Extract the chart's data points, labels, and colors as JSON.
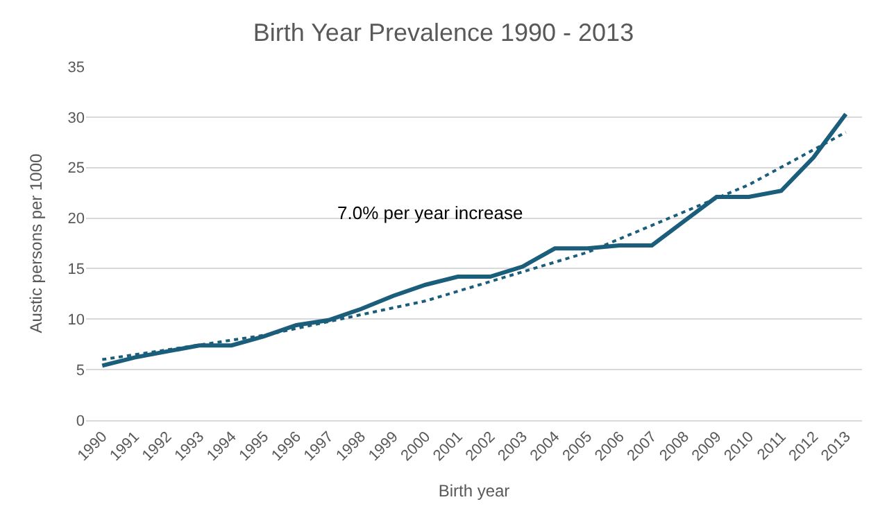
{
  "chart_data": {
    "type": "line",
    "title": "Birth Year Prevalence 1990 - 2013",
    "xlabel": "Birth year",
    "ylabel": "Austic persons per 1000",
    "categories": [
      "1990",
      "1991",
      "1992",
      "1993",
      "1994",
      "1995",
      "1996",
      "1997",
      "1998",
      "1999",
      "2000",
      "2001",
      "2002",
      "2003",
      "2004",
      "2005",
      "2006",
      "2007",
      "2008",
      "2009",
      "2010",
      "2011",
      "2012",
      "2013"
    ],
    "series": [
      {
        "color": "#1b5e7b",
        "line_style": "solid",
        "values": [
          5.4,
          6.2,
          6.8,
          7.4,
          7.4,
          8.3,
          9.4,
          9.9,
          11.0,
          12.3,
          13.4,
          14.2,
          14.2,
          15.2,
          17.0,
          17.0,
          17.3,
          17.3,
          19.7,
          22.1,
          22.1,
          22.7,
          26.0,
          30.3
        ]
      },
      {
        "color": "#1b5e7b",
        "line_style": "dotted",
        "values": [
          6.0,
          null,
          null,
          null,
          null,
          8.4,
          null,
          null,
          null,
          null,
          11.8,
          null,
          null,
          null,
          null,
          16.6,
          null,
          null,
          null,
          null,
          23.3,
          null,
          null,
          28.5
        ]
      }
    ],
    "annotations": [
      "7.0% per year increase"
    ],
    "ylim": [
      0,
      35
    ],
    "yticks": [
      0,
      5,
      10,
      15,
      20,
      25,
      30,
      35
    ],
    "grid": "y",
    "marker": "none"
  }
}
